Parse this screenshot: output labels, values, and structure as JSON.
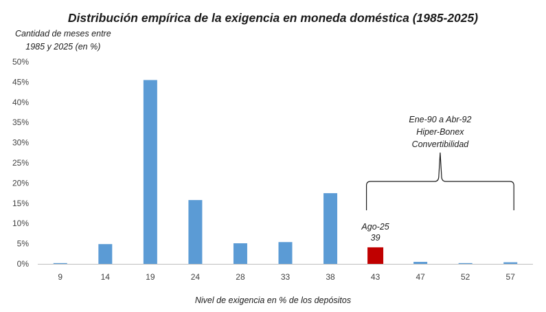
{
  "chart_data": {
    "type": "bar",
    "title": "Distribución empírica de la exigencia en moneda doméstica (1985-2025)",
    "ylabel_lines": [
      "Cantidad de meses entre",
      "1985 y 2025 (en %)"
    ],
    "xlabel": "Nivel de exigencia en % de los depósitos",
    "categories": [
      "9",
      "14",
      "19",
      "24",
      "28",
      "33",
      "38",
      "43",
      "47",
      "52",
      "57"
    ],
    "values": [
      0.2,
      4.9,
      45.5,
      15.8,
      5.1,
      5.4,
      17.5,
      4.1,
      0.5,
      0.2,
      0.4
    ],
    "value_unit": "%",
    "ylim": [
      0,
      50
    ],
    "yticks": [
      0,
      5,
      10,
      15,
      20,
      25,
      30,
      35,
      40,
      45,
      50
    ],
    "ytick_labels": [
      "0%",
      "5%",
      "10%",
      "15%",
      "20%",
      "25%",
      "30%",
      "35%",
      "40%",
      "45%",
      "50%"
    ],
    "highlight_index": 7,
    "colors": {
      "bar": "#5b9bd5",
      "highlight": "#c00000",
      "axis": "#bfbfbf"
    },
    "annotations": {
      "highlight_label": [
        "Ago-25",
        "39"
      ],
      "brace_label": [
        "Ene-90 a Abr-92",
        "Hiper-Bonex",
        "Convertibilidad"
      ],
      "brace_from_category": "43",
      "brace_to_category": "57"
    }
  }
}
